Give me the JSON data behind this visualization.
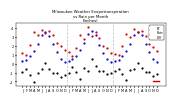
{
  "title": "Milwaukee Weather Evapotranspiration\nvs Rain per Month\n(Inches)",
  "months": [
    "J",
    "F",
    "M",
    "A",
    "M",
    "J",
    "J",
    "A",
    "S",
    "O",
    "N",
    "D",
    "J",
    "F",
    "M",
    "A",
    "M",
    "J",
    "J",
    "A",
    "S",
    "O",
    "N",
    "D",
    "J",
    "F",
    "M",
    "A",
    "M",
    "J",
    "J",
    "A",
    "S",
    "O",
    "N",
    "D"
  ],
  "et_color": "#0000cc",
  "rain_color": "#cc0000",
  "et_data": [
    0.3,
    0.4,
    0.8,
    1.4,
    2.2,
    3.2,
    3.5,
    3.1,
    2.2,
    1.3,
    0.5,
    0.2,
    0.3,
    0.5,
    0.9,
    1.5,
    2.3,
    3.3,
    3.6,
    3.2,
    2.1,
    1.2,
    0.5,
    0.2,
    0.3,
    0.4,
    0.85,
    1.45,
    2.25,
    3.25,
    3.55,
    3.15,
    2.15,
    1.25,
    0.5,
    0.2
  ],
  "rain_data": [
    1.2,
    1.0,
    2.1,
    3.5,
    3.2,
    3.8,
    3.4,
    3.7,
    3.2,
    2.3,
    2.0,
    1.5,
    1.3,
    0.9,
    1.8,
    3.2,
    2.8,
    4.1,
    3.1,
    3.5,
    2.9,
    2.0,
    1.7,
    1.2,
    1.1,
    1.0,
    2.0,
    3.3,
    3.0,
    3.9,
    3.5,
    3.6,
    3.1,
    2.2,
    1.9,
    1.4
  ],
  "diff_data": [
    -0.9,
    -0.6,
    -1.3,
    -2.1,
    -1.0,
    -0.6,
    0.1,
    -0.6,
    -1.0,
    -1.0,
    -1.5,
    -1.3,
    -1.0,
    -0.4,
    -0.9,
    -1.7,
    -0.5,
    -0.8,
    0.5,
    -0.3,
    -0.8,
    -0.8,
    -1.2,
    -1.0,
    -0.8,
    -0.6,
    -1.15,
    -1.85,
    -0.75,
    -0.65,
    0.05,
    -0.45,
    -0.95,
    -0.95,
    -1.4,
    -1.2
  ],
  "ylim": [
    -2.5,
    4.5
  ],
  "year_dividers": [
    11.5,
    23.5
  ],
  "background_color": "#ffffff",
  "grid_color": "#aaaaaa",
  "legend_et": "ET",
  "legend_rain": "Rain",
  "legend_diff": "Diff"
}
